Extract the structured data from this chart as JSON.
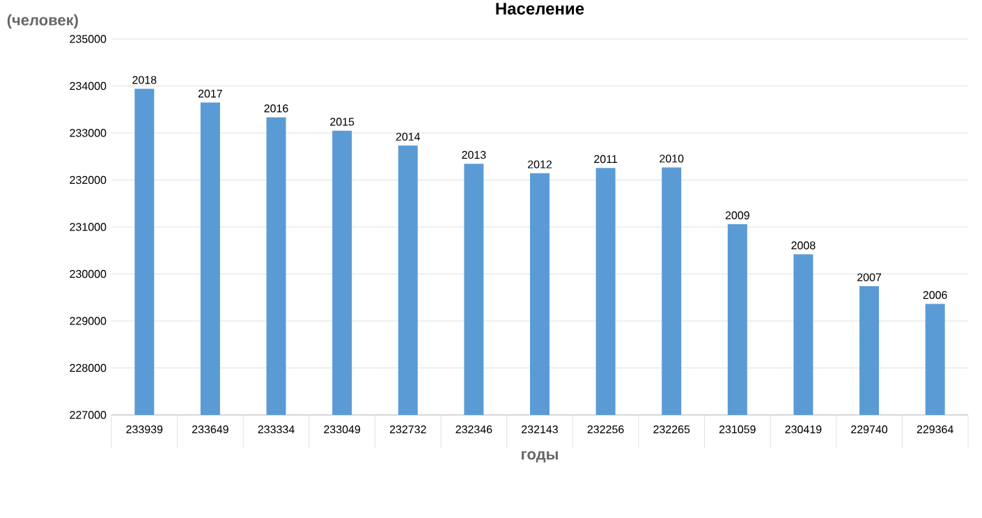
{
  "chart_data": {
    "type": "bar",
    "title": "Население",
    "xlabel": "годы",
    "ylabel": "(человек)",
    "categories": [
      "233939",
      "233649",
      "233334",
      "233049",
      "232732",
      "232346",
      "232143",
      "232256",
      "232265",
      "231059",
      "230419",
      "229740",
      "229364"
    ],
    "values": [
      233939,
      233649,
      233334,
      233049,
      232732,
      232346,
      232143,
      232256,
      232265,
      231059,
      230419,
      229740,
      229364
    ],
    "annotations": [
      {
        "text": "2018",
        "x": "233939",
        "y": 233939
      },
      {
        "text": "2017",
        "x": "233649",
        "y": 233649
      },
      {
        "text": "2016",
        "x": "233334",
        "y": 233334
      },
      {
        "text": "2015",
        "x": "233049",
        "y": 233049
      },
      {
        "text": "2014",
        "x": "232732",
        "y": 232732
      },
      {
        "text": "2013",
        "x": "232346",
        "y": 232346
      },
      {
        "text": "2012",
        "x": "232143",
        "y": 232143
      },
      {
        "text": "2011",
        "x": "232256",
        "y": 232256
      },
      {
        "text": "2010",
        "x": "232265",
        "y": 232265
      },
      {
        "text": "2009",
        "x": "231059",
        "y": 231059
      },
      {
        "text": "2008",
        "x": "230419",
        "y": 230419
      },
      {
        "text": "2007",
        "x": "229740",
        "y": 229740
      },
      {
        "text": "2006",
        "x": "229364",
        "y": 229364
      }
    ],
    "color": "#5b9bd5",
    "ylim": [
      227000,
      235000
    ],
    "yticks": [
      227000,
      228000,
      229000,
      230000,
      231000,
      232000,
      233000,
      234000,
      235000
    ],
    "grid": "y"
  }
}
